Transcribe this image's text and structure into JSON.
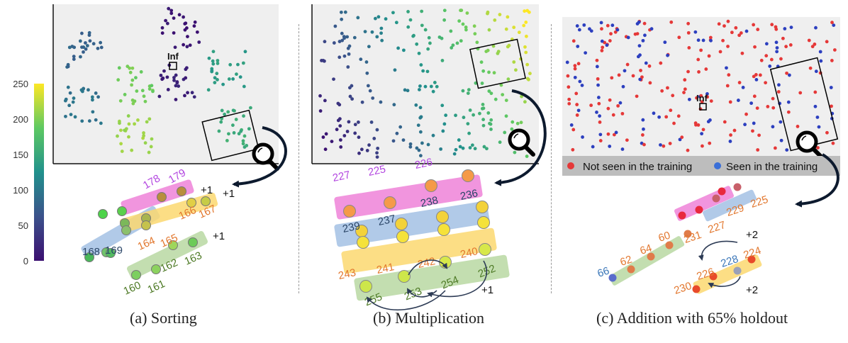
{
  "figure": {
    "captions": [
      "(a) Sorting",
      "(b) Multiplication",
      "(c) Addition with 65% holdout"
    ]
  },
  "colors": {
    "pink": "#ee82d8",
    "blue": "#9dbde2",
    "yellow": "#fbd870",
    "green": "#b9d8a2",
    "red_point": "#e53838",
    "blue_point": "#2c3fbf",
    "label_purple": "#b347e0",
    "label_navy": "#2b4668",
    "label_orange": "#e2772e",
    "label_green": "#4e7a26",
    "label_blue": "#3a76b8"
  },
  "colorbar": {
    "ticks": [
      "250",
      "200",
      "150",
      "100",
      "50",
      "0"
    ],
    "min": 0,
    "max": 250
  },
  "chart_data": [
    {
      "type": "scatter",
      "title": "(a) Sorting",
      "overview_annotation": "Inf",
      "zoom_labels": {
        "pink": [
          "178",
          "179"
        ],
        "blue": [
          "168",
          "169"
        ],
        "yellow": [
          "164",
          "165",
          "166",
          "167"
        ],
        "green": [
          "160",
          "161",
          "162",
          "163"
        ]
      },
      "step_annotations": [
        "+1",
        "+1",
        "+1"
      ]
    },
    {
      "type": "scatter",
      "title": "(b) Multiplication",
      "zoom_labels": {
        "pink": [
          "227",
          "225",
          "226"
        ],
        "blue": [
          "239",
          "237",
          "238",
          "236"
        ],
        "yellow": [
          "243",
          "241",
          "242",
          "240"
        ],
        "green": [
          "255",
          "253",
          "254",
          "252"
        ]
      },
      "step_annotations": [
        "+1"
      ]
    },
    {
      "type": "scatter",
      "title": "(c) Addition with 65% holdout",
      "overview_annotation": "Inf",
      "legend": [
        "Not seen in the training",
        "Seen in the training"
      ],
      "zoom_labels": {
        "pink": [
          "229",
          "225",
          "231",
          "227"
        ],
        "green": [
          "66",
          "62",
          "64",
          "60"
        ],
        "yellow": [
          "230",
          "226",
          "228",
          "224"
        ]
      },
      "step_annotations": [
        "+2",
        "+2"
      ]
    }
  ]
}
